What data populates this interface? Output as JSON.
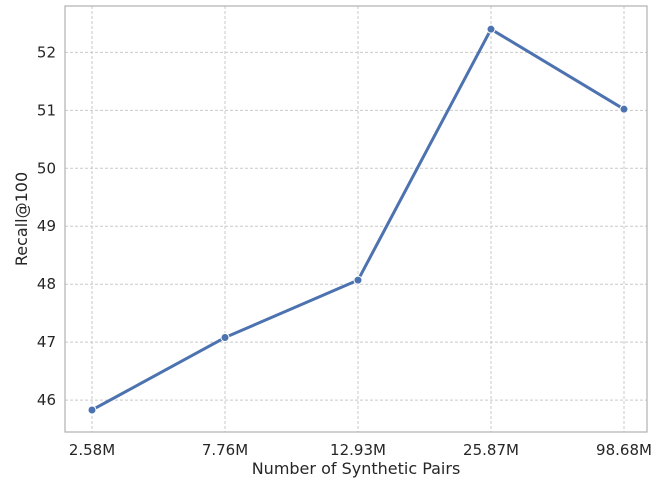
{
  "chart_data": {
    "type": "line",
    "categories": [
      "2.58M",
      "7.76M",
      "12.93M",
      "25.87M",
      "98.68M"
    ],
    "values": [
      45.83,
      47.08,
      48.07,
      52.4,
      51.02
    ],
    "xlabel": "Number of Synthetic Pairs",
    "ylabel": "Recall@100",
    "ylim": [
      45.45,
      52.8
    ],
    "yticks": [
      46,
      47,
      48,
      49,
      50,
      51,
      52
    ],
    "grid": true,
    "line_color": "#4c72b0",
    "marker": "circle"
  }
}
